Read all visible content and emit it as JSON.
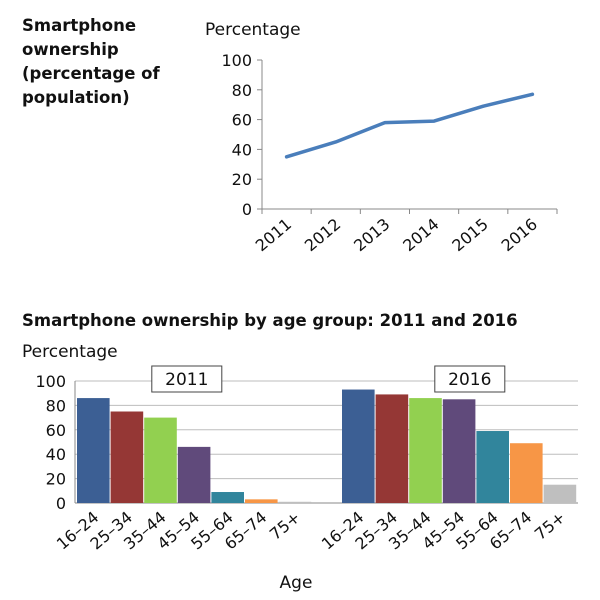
{
  "chart_data": [
    {
      "type": "line",
      "title": "Smartphone ownership (percentage of population)",
      "ylabel": "Percentage",
      "xlabel": "",
      "ylim": [
        0,
        100
      ],
      "yticks": [
        0,
        20,
        40,
        60,
        80,
        100
      ],
      "categories": [
        "2011",
        "2012",
        "2013",
        "2014",
        "2015",
        "2016"
      ],
      "series": [
        {
          "name": "Smartphone ownership",
          "values": [
            35,
            45,
            58,
            59,
            69,
            77
          ],
          "color": "#4a7ebb"
        }
      ],
      "grid": false
    },
    {
      "type": "bar",
      "title": "Smartphone ownership by age group: 2011 and 2016",
      "ylabel": "Percentage",
      "xlabel": "Age",
      "ylim": [
        0,
        100
      ],
      "yticks": [
        0,
        20,
        40,
        60,
        80,
        100
      ],
      "grid": true,
      "categories": [
        "16–24",
        "25–34",
        "35–44",
        "45–54",
        "55–64",
        "65–74",
        "75+"
      ],
      "colors": [
        "#3c5f94",
        "#953735",
        "#92d050",
        "#604a7b",
        "#31859c",
        "#f79646",
        "#bfbfbf"
      ],
      "groups": [
        {
          "name": "2011",
          "values": [
            86,
            75,
            70,
            46,
            9,
            3,
            1
          ]
        },
        {
          "name": "2016",
          "values": [
            93,
            89,
            86,
            85,
            59,
            49,
            15
          ]
        }
      ]
    }
  ]
}
